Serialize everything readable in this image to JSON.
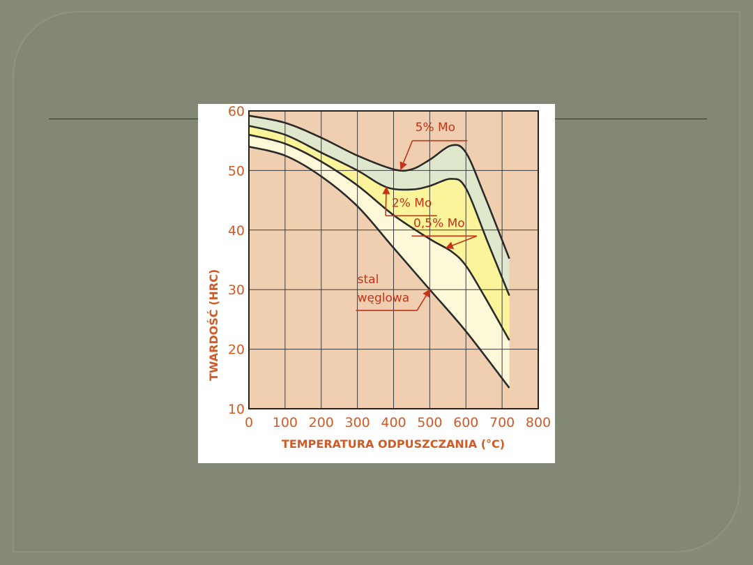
{
  "chart_data": {
    "type": "line",
    "xlabel": "TEMPERATURA ODPUSZCZANIA (°C)",
    "ylabel": "TWARDOŚĆ  (HRC)",
    "xlim": [
      0,
      800
    ],
    "ylim": [
      10,
      60
    ],
    "xticks": [
      0,
      100,
      200,
      300,
      400,
      500,
      600,
      700,
      800
    ],
    "xtick_labels": [
      "0",
      "100",
      "200",
      "300",
      "400",
      "500",
      "600",
      "700",
      "800"
    ],
    "yticks": [
      10,
      20,
      30,
      40,
      50,
      60
    ],
    "ytick_labels": [
      "10",
      "20",
      "30",
      "40",
      "50",
      "60"
    ],
    "grid": true,
    "legend": "none (inline annotations with arrows)",
    "colors": {
      "plot_background": "#f0cfb0",
      "band_5mo": "#dfe8cc",
      "band_2mo": "#fcf49a",
      "band_05mo": "#fdf9d8",
      "curve": "#2a2a2a",
      "grid": "#3a3a3a",
      "axis_text": "#d25a24",
      "annotation": "#c7321a"
    },
    "series": [
      {
        "name": "5% Mo",
        "x": [
          0,
          100,
          200,
          300,
          400,
          450,
          500,
          560,
          600,
          650,
          720
        ],
        "y": [
          59.2,
          58,
          55.5,
          52.5,
          50.2,
          50.2,
          51.8,
          54.2,
          53,
          46,
          35.2
        ]
      },
      {
        "name": "2% Mo",
        "x": [
          0,
          100,
          200,
          300,
          380,
          450,
          500,
          560,
          600,
          660,
          720
        ],
        "y": [
          57.5,
          56,
          53,
          50,
          47.2,
          46.8,
          47.4,
          48.6,
          47,
          38,
          29
        ]
      },
      {
        "name": "0,5% Mo",
        "x": [
          0,
          100,
          200,
          300,
          400,
          500,
          560,
          600,
          650,
          720
        ],
        "y": [
          56,
          54.5,
          51.5,
          47.5,
          42.5,
          38.5,
          36.4,
          34,
          29,
          21.5
        ]
      },
      {
        "name": "stal węglowa",
        "x": [
          0,
          100,
          200,
          300,
          400,
          500,
          600,
          720
        ],
        "y": [
          54,
          52.5,
          49,
          44,
          37,
          30,
          23,
          13.5
        ]
      }
    ],
    "annotations": [
      {
        "text": "5% Mo",
        "points_to_x": 420,
        "points_to_y": 50.2
      },
      {
        "text": "2% Mo",
        "points_to_x": 380,
        "points_to_y": 47.2
      },
      {
        "text": "0,5% Mo",
        "points_to_x": 545,
        "points_to_y": 37
      },
      {
        "text": "stal",
        "points_to_x": 500,
        "points_to_y": 30
      },
      {
        "text": "węglowa",
        "points_to_x": 500,
        "points_to_y": 30
      }
    ]
  }
}
